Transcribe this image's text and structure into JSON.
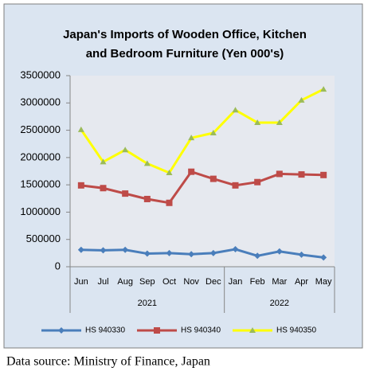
{
  "chart_data": {
    "type": "line",
    "title": [
      "Japan's Imports of  Wooden  Office, Kitchen",
      "and Bedroom Furniture  (Yen 000's)"
    ],
    "categories": [
      "Jun",
      "Jul",
      "Aug",
      "Sep",
      "Oct",
      "Nov",
      "Dec",
      "Jan",
      "Feb",
      "Mar",
      "Apr",
      "May"
    ],
    "category_groups": [
      {
        "label": "2021",
        "size": 7
      },
      {
        "label": "2022",
        "size": 5
      }
    ],
    "series": [
      {
        "name": "HS 940330",
        "color": "#4a7ebb",
        "marker": "diamond",
        "marker_color": "#4a7ebb",
        "values": [
          310000,
          300000,
          310000,
          240000,
          250000,
          230000,
          250000,
          320000,
          200000,
          280000,
          220000,
          170000
        ]
      },
      {
        "name": "HS 940340",
        "color": "#be4b48",
        "marker": "square",
        "marker_color": "#be4b48",
        "values": [
          1490000,
          1440000,
          1340000,
          1240000,
          1170000,
          1740000,
          1610000,
          1490000,
          1550000,
          1700000,
          1690000,
          1680000
        ]
      },
      {
        "name": "HS 940350",
        "color": "#ffff00",
        "marker": "triangle",
        "marker_color": "#9bbb59",
        "values": [
          2510000,
          1920000,
          2140000,
          1890000,
          1720000,
          2360000,
          2450000,
          2870000,
          2640000,
          2640000,
          3050000,
          3250000
        ]
      }
    ],
    "ylim": [
      0,
      3500000
    ],
    "yticks": [
      0,
      500000,
      1000000,
      1500000,
      2000000,
      2500000,
      3000000,
      3500000
    ],
    "grid": false,
    "legend": "bottom",
    "source": "Data source: Ministry of Finance, Japan"
  }
}
